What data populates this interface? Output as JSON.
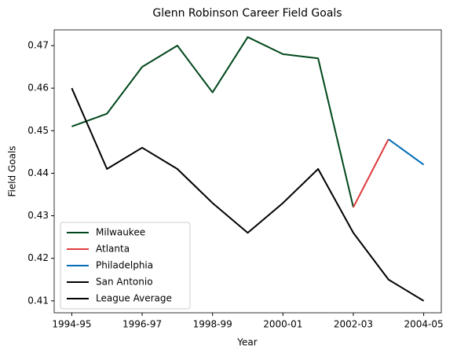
{
  "chart_data": {
    "type": "line",
    "title": "Glenn Robinson Career Field Goals",
    "xlabel": "Year",
    "ylabel": "Field Goals",
    "categories": [
      "1994-95",
      null,
      "1996-97",
      null,
      "1998-99",
      null,
      "2000-01",
      null,
      "2002-03",
      null,
      "2004-05"
    ],
    "series": [
      {
        "name": "Milwaukee",
        "color": "#00471b",
        "values": [
          0.451,
          0.454,
          0.465,
          0.47,
          0.459,
          0.472,
          0.468,
          0.467,
          0.432,
          null,
          null
        ]
      },
      {
        "name": "Atlanta",
        "color": "#e03a3e",
        "values": [
          null,
          null,
          null,
          null,
          null,
          null,
          null,
          null,
          0.432,
          0.448,
          null
        ]
      },
      {
        "name": "Philadelphia",
        "color": "#006bb6",
        "values": [
          null,
          null,
          null,
          null,
          null,
          null,
          null,
          null,
          null,
          0.448,
          0.442
        ]
      },
      {
        "name": "San Antonio",
        "color": "#000000",
        "values": [
          null,
          null,
          null,
          null,
          null,
          null,
          null,
          null,
          null,
          null,
          null
        ]
      },
      {
        "name": "League Average",
        "color": "#000000",
        "values": [
          0.46,
          0.441,
          0.446,
          0.441,
          0.433,
          0.426,
          0.433,
          0.441,
          0.426,
          0.415,
          0.41
        ]
      }
    ],
    "ylim": [
      0.4072,
      0.4737
    ],
    "yticks": [
      0.41,
      0.42,
      0.43,
      0.44,
      0.45,
      0.46,
      0.47
    ],
    "legend": "lower left"
  }
}
